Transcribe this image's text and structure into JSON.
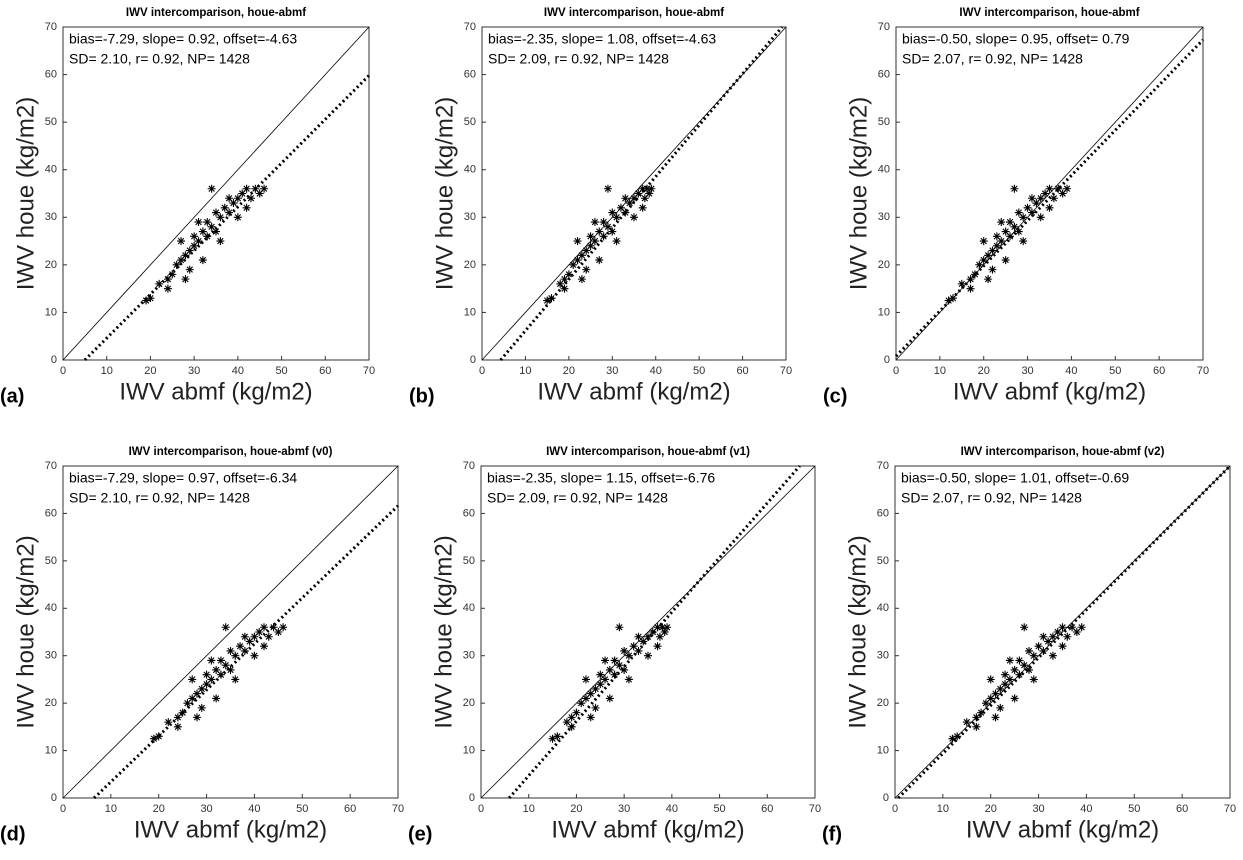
{
  "chart_data": [
    {
      "type": "scatter",
      "panel_label": "(a)",
      "title": "IWV intercomparison, houe-abmf",
      "annotation": [
        "bias=-7.29, slope= 0.92, offset=-4.63",
        "SD= 2.10, r= 0.92, NP= 1428"
      ],
      "x_label": "IWV abmf (kg/m2)",
      "y_label": "IWV houe (kg/m2)",
      "xlim": [
        0,
        70
      ],
      "ylim": [
        0,
        70
      ],
      "xticks": [
        0,
        10,
        20,
        30,
        40,
        50,
        60,
        70
      ],
      "yticks": [
        0,
        10,
        20,
        30,
        40,
        50,
        60,
        70
      ],
      "color": "#000000",
      "x": [
        19,
        20,
        22,
        24,
        25,
        26,
        27,
        28,
        29,
        30,
        30,
        31,
        32,
        33,
        33,
        34,
        35,
        35,
        36,
        37,
        38,
        38,
        39,
        40,
        41,
        42,
        43,
        44,
        45,
        46,
        27,
        29,
        31,
        36,
        40,
        24,
        34,
        28,
        32,
        42
      ],
      "y": [
        12.5,
        13,
        16,
        17,
        18,
        20,
        21,
        22,
        23,
        24,
        26,
        25,
        27,
        26,
        29,
        28,
        27,
        31,
        30,
        32,
        31,
        34,
        33,
        34,
        35,
        36,
        34,
        36,
        35,
        36,
        25,
        19,
        29,
        25,
        30,
        15,
        36,
        17,
        21,
        32
      ],
      "identity_line": {
        "x": [
          0,
          70
        ],
        "y": [
          0,
          70
        ]
      },
      "fit_line": {
        "x": [
          5,
          70
        ],
        "y": [
          0,
          59.8
        ]
      }
    },
    {
      "type": "scatter",
      "panel_label": "(b)",
      "title": "IWV intercomparison, houe-abmf",
      "annotation": [
        "bias=-2.35, slope= 1.08, offset=-4.63",
        "SD= 2.09, r= 0.92, NP= 1428"
      ],
      "x_label": "IWV abmf (kg/m2)",
      "y_label": "IWV houe (kg/m2)",
      "xlim": [
        0,
        70
      ],
      "ylim": [
        0,
        70
      ],
      "xticks": [
        0,
        10,
        20,
        30,
        40,
        50,
        60,
        70
      ],
      "yticks": [
        0,
        10,
        20,
        30,
        40,
        50,
        60,
        70
      ],
      "color": "#000000",
      "x": [
        15,
        16,
        18,
        19,
        20,
        21,
        22,
        23,
        24,
        25,
        25,
        26,
        27,
        28,
        28,
        29,
        30,
        30,
        31,
        32,
        33,
        33,
        34,
        35,
        36,
        37,
        37.5,
        38,
        38.5,
        39,
        22,
        24,
        26,
        31,
        35,
        19,
        29,
        23,
        27,
        37
      ],
      "y": [
        12.5,
        13,
        16,
        17,
        18,
        20,
        21,
        22,
        23,
        24,
        26,
        25,
        27,
        26,
        29,
        28,
        27,
        31,
        30,
        32,
        31,
        34,
        33,
        34,
        35,
        36,
        34,
        36,
        35,
        36,
        25,
        19,
        29,
        25,
        30,
        15,
        36,
        17,
        21,
        32
      ],
      "identity_line": {
        "x": [
          0,
          70
        ],
        "y": [
          0,
          70
        ]
      },
      "fit_line": {
        "x": [
          4.3,
          69.1
        ],
        "y": [
          0,
          70
        ]
      }
    },
    {
      "type": "scatter",
      "panel_label": "(c)",
      "title": "IWV intercomparison, houe-abmf",
      "annotation": [
        "bias=-0.50, slope= 0.95, offset= 0.79",
        "SD= 2.07, r= 0.92, NP= 1428"
      ],
      "x_label": "IWV abmf (kg/m2)",
      "y_label": "IWV houe (kg/m2)",
      "xlim": [
        0,
        70
      ],
      "ylim": [
        0,
        70
      ],
      "xticks": [
        0,
        10,
        20,
        30,
        40,
        50,
        60,
        70
      ],
      "yticks": [
        0,
        10,
        20,
        30,
        40,
        50,
        60,
        70
      ],
      "color": "#000000",
      "x": [
        12,
        13,
        15,
        17,
        18,
        19,
        20,
        21,
        22,
        23,
        23,
        24,
        25,
        26,
        26,
        27,
        28,
        28,
        29,
        30,
        31,
        31,
        32,
        33,
        34,
        35,
        36,
        37,
        38,
        39,
        20,
        22,
        24,
        29,
        33,
        17,
        27,
        21,
        25,
        35
      ],
      "y": [
        12.5,
        13,
        16,
        17,
        18,
        20,
        21,
        22,
        23,
        24,
        26,
        25,
        27,
        26,
        29,
        28,
        27,
        31,
        30,
        32,
        31,
        34,
        33,
        34,
        35,
        36,
        34,
        36,
        35,
        36,
        25,
        19,
        29,
        25,
        30,
        15,
        36,
        17,
        21,
        32
      ],
      "identity_line": {
        "x": [
          0,
          70
        ],
        "y": [
          0,
          70
        ]
      },
      "fit_line": {
        "x": [
          0,
          70
        ],
        "y": [
          0.8,
          67.3
        ]
      }
    },
    {
      "type": "scatter",
      "panel_label": "(d)",
      "title": "IWV intercomparison, houe-abmf (v0)",
      "annotation": [
        "bias=-7.29, slope= 0.97, offset=-6.34",
        "SD= 2.10, r= 0.92, NP= 1428"
      ],
      "x_label": "IWV abmf (kg/m2)",
      "y_label": "IWV houe (kg/m2)",
      "xlim": [
        0,
        70
      ],
      "ylim": [
        0,
        70
      ],
      "xticks": [
        0,
        10,
        20,
        30,
        40,
        50,
        60,
        70
      ],
      "yticks": [
        0,
        10,
        20,
        30,
        40,
        50,
        60,
        70
      ],
      "color": "#000000",
      "x": [
        19,
        20,
        22,
        24,
        25,
        26,
        27,
        28,
        29,
        30,
        30,
        31,
        32,
        33,
        33,
        34,
        35,
        35,
        36,
        37,
        38,
        38,
        39,
        40,
        41,
        42,
        43,
        44,
        45,
        46,
        27,
        29,
        31,
        36,
        40,
        24,
        34,
        28,
        32,
        42
      ],
      "y": [
        12.5,
        13,
        16,
        17,
        18,
        20,
        21,
        22,
        23,
        24,
        26,
        25,
        27,
        26,
        29,
        28,
        27,
        31,
        30,
        32,
        31,
        34,
        33,
        34,
        35,
        36,
        34,
        36,
        35,
        36,
        25,
        19,
        29,
        25,
        30,
        15,
        36,
        17,
        21,
        32
      ],
      "identity_line": {
        "x": [
          0,
          70
        ],
        "y": [
          0,
          70
        ]
      },
      "fit_line": {
        "x": [
          6.5,
          70
        ],
        "y": [
          0,
          61.6
        ]
      }
    },
    {
      "type": "scatter",
      "panel_label": "(e)",
      "title": "IWV intercomparison, houe-abmf (v1)",
      "annotation": [
        "bias=-2.35, slope= 1.15, offset=-6.76",
        "SD= 2.09, r= 0.92, NP= 1428"
      ],
      "x_label": "IWV abmf (kg/m2)",
      "y_label": "IWV houe (kg/m2)",
      "xlim": [
        0,
        70
      ],
      "ylim": [
        0,
        70
      ],
      "xticks": [
        0,
        10,
        20,
        30,
        40,
        50,
        60,
        70
      ],
      "yticks": [
        0,
        10,
        20,
        30,
        40,
        50,
        60,
        70
      ],
      "color": "#000000",
      "x": [
        15,
        16,
        18,
        19,
        20,
        21,
        22,
        23,
        24,
        25,
        25,
        26,
        27,
        28,
        28,
        29,
        30,
        30,
        31,
        32,
        33,
        33,
        34,
        35,
        36,
        37,
        37.5,
        38,
        38.5,
        39,
        22,
        24,
        26,
        31,
        35,
        19,
        29,
        23,
        27,
        37
      ],
      "y": [
        12.5,
        13,
        16,
        17,
        18,
        20,
        21,
        22,
        23,
        24,
        26,
        25,
        27,
        26,
        29,
        28,
        27,
        31,
        30,
        32,
        31,
        34,
        33,
        34,
        35,
        36,
        34,
        36,
        35,
        36,
        25,
        19,
        29,
        25,
        30,
        15,
        36,
        17,
        21,
        32
      ],
      "identity_line": {
        "x": [
          0,
          70
        ],
        "y": [
          0,
          70
        ]
      },
      "fit_line": {
        "x": [
          5.9,
          66.8
        ],
        "y": [
          0,
          70
        ]
      }
    },
    {
      "type": "scatter",
      "panel_label": "(f)",
      "title": "IWV intercomparison, houe-abmf (v2)",
      "annotation": [
        "bias=-0.50, slope= 1.01, offset=-0.69",
        "SD= 2.07, r= 0.92, NP= 1428"
      ],
      "x_label": "IWV abmf (kg/m2)",
      "y_label": "IWV houe (kg/m2)",
      "xlim": [
        0,
        70
      ],
      "ylim": [
        0,
        70
      ],
      "xticks": [
        0,
        10,
        20,
        30,
        40,
        50,
        60,
        70
      ],
      "yticks": [
        0,
        10,
        20,
        30,
        40,
        50,
        60,
        70
      ],
      "color": "#000000",
      "x": [
        12,
        13,
        15,
        17,
        18,
        19,
        20,
        21,
        22,
        23,
        23,
        24,
        25,
        26,
        26,
        27,
        28,
        28,
        29,
        30,
        31,
        31,
        32,
        33,
        34,
        35,
        36,
        37,
        38,
        39,
        20,
        22,
        24,
        29,
        33,
        17,
        27,
        21,
        25,
        35
      ],
      "y": [
        12.5,
        13,
        16,
        17,
        18,
        20,
        21,
        22,
        23,
        24,
        26,
        25,
        27,
        26,
        29,
        28,
        27,
        31,
        30,
        32,
        31,
        34,
        33,
        34,
        35,
        36,
        34,
        36,
        35,
        36,
        25,
        19,
        29,
        25,
        30,
        15,
        36,
        17,
        21,
        32
      ],
      "identity_line": {
        "x": [
          0,
          70
        ],
        "y": [
          0,
          70
        ]
      },
      "fit_line": {
        "x": [
          0.7,
          70
        ],
        "y": [
          0,
          70
        ]
      }
    }
  ]
}
